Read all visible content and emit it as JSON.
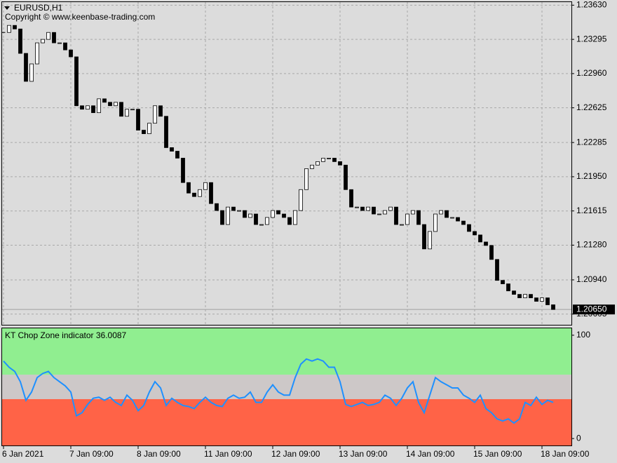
{
  "chart_data": [
    {
      "type": "candlestick",
      "title": "EURUSD,H1",
      "subtitle": "Copyright © www.keenbase-trading.com",
      "categories": [
        "6 Jan 2021",
        null,
        null,
        null,
        null,
        null,
        null,
        null,
        null,
        null,
        null,
        null,
        "7 Jan 09:00",
        null,
        null,
        null,
        null,
        null,
        null,
        null,
        null,
        null,
        null,
        null,
        "8 Jan 09:00",
        null,
        null,
        null,
        null,
        null,
        null,
        null,
        null,
        null,
        null,
        null,
        "11 Jan 09:00",
        null,
        null,
        null,
        null,
        null,
        null,
        null,
        null,
        null,
        null,
        null,
        "12 Jan 09:00",
        null,
        null,
        null,
        null,
        null,
        null,
        null,
        null,
        null,
        null,
        null,
        "13 Jan 09:00",
        null,
        null,
        null,
        null,
        null,
        null,
        null,
        null,
        null,
        null,
        null,
        "14 Jan 09:00",
        null,
        null,
        null,
        null,
        null,
        null,
        null,
        null,
        null,
        null,
        null,
        "15 Jan 09:00",
        null,
        null,
        null,
        null,
        null,
        null,
        null,
        null,
        null,
        null,
        null,
        "18 Jan 09:00",
        null,
        null
      ],
      "close": [
        1.23363,
        1.23432,
        1.23397,
        1.23158,
        1.22884,
        1.23055,
        1.23261,
        1.23295,
        1.23363,
        1.23261,
        1.23261,
        1.23192,
        1.23124,
        1.22645,
        1.22611,
        1.22645,
        1.22577,
        1.22713,
        1.22679,
        1.22645,
        1.22679,
        1.22542,
        1.22611,
        1.22611,
        1.22406,
        1.22371,
        1.22474,
        1.22645,
        1.22542,
        1.22235,
        1.222,
        1.22132,
        1.21893,
        1.2179,
        1.21756,
        1.21824,
        1.21893,
        1.21687,
        1.21619,
        1.21482,
        1.21653,
        1.21619,
        1.21619,
        1.21551,
        1.21585,
        1.21482,
        1.21482,
        1.21551,
        1.21619,
        1.21585,
        1.21551,
        1.21482,
        1.21619,
        1.21824,
        1.22029,
        1.22064,
        1.22098,
        1.22132,
        1.22132,
        1.22098,
        1.22064,
        1.21824,
        1.21653,
        1.21653,
        1.21619,
        1.21653,
        1.21585,
        1.21585,
        1.21619,
        1.21653,
        1.21482,
        1.21482,
        1.21585,
        1.21619,
        1.21482,
        1.21243,
        1.21414,
        1.21585,
        1.21619,
        1.21551,
        1.21551,
        1.21516,
        1.21482,
        1.21414,
        1.2138,
        1.21311,
        1.21277,
        1.2114,
        1.20935,
        1.20901,
        1.20832,
        1.20798,
        1.20764,
        1.20798,
        1.20764,
        1.2073,
        1.20764,
        1.20696,
        1.2065
      ],
      "ylim": [
        1.205,
        1.2366
      ],
      "yticks": [
        {
          "value": 1.2363,
          "label": "1.23630"
        },
        {
          "value": 1.23295,
          "label": "1.23295"
        },
        {
          "value": 1.2296,
          "label": "1.22960"
        },
        {
          "value": 1.22625,
          "label": "1.22625"
        },
        {
          "value": 1.22285,
          "label": "1.22285"
        },
        {
          "value": 1.2195,
          "label": "1.21950"
        },
        {
          "value": 1.21615,
          "label": "1.21615"
        },
        {
          "value": 1.2128,
          "label": "1.21280"
        },
        {
          "value": 1.2094,
          "label": "1.20940"
        },
        {
          "value": 1.20605,
          "label": "1.20605"
        }
      ],
      "price_line": {
        "value": 1.2065,
        "label": "1.20650"
      },
      "grid": true,
      "up_color": "#ffffff",
      "down_color": "#000000"
    },
    {
      "type": "line",
      "title": "KT Chop Zone indicator 36.0087",
      "color": "#1e90ff",
      "values": [
        75,
        69,
        65,
        55,
        37,
        45,
        59,
        63,
        65,
        59,
        55,
        51,
        45,
        22,
        25,
        33,
        39,
        40,
        37,
        40,
        35,
        32,
        42,
        37,
        27,
        32,
        45,
        55,
        49,
        32,
        39,
        35,
        32,
        31,
        29,
        35,
        40,
        35,
        32,
        31,
        39,
        42,
        39,
        40,
        45,
        35,
        35,
        45,
        52,
        45,
        42,
        42,
        59,
        72,
        77,
        75,
        77,
        75,
        69,
        69,
        55,
        33,
        31,
        33,
        35,
        32,
        33,
        35,
        42,
        39,
        32,
        39,
        49,
        55,
        35,
        25,
        42,
        59,
        55,
        52,
        49,
        49,
        42,
        39,
        35,
        42,
        29,
        25,
        19,
        17,
        19,
        15,
        19,
        35,
        32,
        40,
        33,
        37,
        35
      ],
      "ylim": [
        -6.7,
        106.7
      ],
      "yticks": [
        0,
        100
      ],
      "levels": [
        38.2,
        61.8
      ],
      "zone_colors": [
        "#ff6347",
        "#cdc8c8",
        "#90ee90"
      ]
    }
  ]
}
